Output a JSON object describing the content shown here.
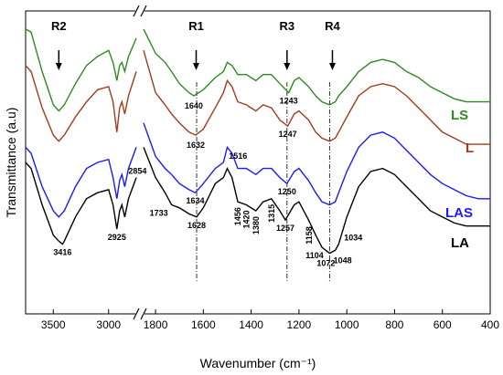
{
  "chart_data": {
    "type": "line",
    "title": "",
    "xlabel": "Wavenumber (cm⁻¹)",
    "ylabel": "Transmittance (a.u)",
    "xlim": [
      3750,
      400
    ],
    "x_reversed": true,
    "x_axis_break": [
      2750,
      1850
    ],
    "xticks": [
      3500,
      3000,
      1800,
      1600,
      1400,
      1200,
      1000,
      800,
      600,
      400
    ],
    "ylim": [
      0,
      10
    ],
    "y_ticks_shown": false,
    "grid": false,
    "legend": "labels placed at right end of each curve",
    "series": [
      {
        "name": "LS",
        "color": "#2e8b1e",
        "points": [
          [
            3750,
            9.4
          ],
          [
            3700,
            9.3
          ],
          [
            3600,
            8.0
          ],
          [
            3500,
            6.9
          ],
          [
            3450,
            6.7
          ],
          [
            3400,
            6.9
          ],
          [
            3300,
            7.6
          ],
          [
            3200,
            8.2
          ],
          [
            3100,
            8.5
          ],
          [
            3000,
            8.7
          ],
          [
            2960,
            8.3
          ],
          [
            2925,
            7.7
          ],
          [
            2900,
            8.2
          ],
          [
            2880,
            8.3
          ],
          [
            2854,
            8.0
          ],
          [
            2820,
            8.5
          ],
          [
            2750,
            9.1
          ],
          [
            1850,
            9.4
          ],
          [
            1800,
            8.6
          ],
          [
            1760,
            8.3
          ],
          [
            1733,
            8.0
          ],
          [
            1700,
            7.6
          ],
          [
            1660,
            7.3
          ],
          [
            1640,
            7.2
          ],
          [
            1600,
            7.4
          ],
          [
            1550,
            7.8
          ],
          [
            1516,
            8.0
          ],
          [
            1500,
            8.3
          ],
          [
            1480,
            8.2
          ],
          [
            1456,
            7.9
          ],
          [
            1420,
            7.9
          ],
          [
            1380,
            7.7
          ],
          [
            1350,
            7.9
          ],
          [
            1315,
            7.9
          ],
          [
            1280,
            7.6
          ],
          [
            1243,
            7.3
          ],
          [
            1220,
            7.7
          ],
          [
            1200,
            7.8
          ],
          [
            1160,
            7.5
          ],
          [
            1130,
            7.2
          ],
          [
            1104,
            7.0
          ],
          [
            1072,
            6.9
          ],
          [
            1048,
            7.0
          ],
          [
            1034,
            7.2
          ],
          [
            1000,
            7.5
          ],
          [
            950,
            8.0
          ],
          [
            900,
            8.3
          ],
          [
            850,
            8.4
          ],
          [
            800,
            8.3
          ],
          [
            750,
            8.0
          ],
          [
            700,
            7.8
          ],
          [
            650,
            7.5
          ],
          [
            600,
            7.3
          ],
          [
            550,
            7.1
          ],
          [
            500,
            7.0
          ],
          [
            450,
            7.0
          ],
          [
            400,
            7.0
          ]
        ]
      },
      {
        "name": "L",
        "color": "#a33a1c",
        "points": [
          [
            3750,
            8.2
          ],
          [
            3700,
            8.0
          ],
          [
            3600,
            6.8
          ],
          [
            3500,
            5.9
          ],
          [
            3450,
            5.7
          ],
          [
            3400,
            5.9
          ],
          [
            3300,
            6.5
          ],
          [
            3200,
            7.0
          ],
          [
            3100,
            7.4
          ],
          [
            3000,
            7.5
          ],
          [
            2960,
            7.0
          ],
          [
            2925,
            6.0
          ],
          [
            2900,
            6.8
          ],
          [
            2880,
            7.0
          ],
          [
            2854,
            6.6
          ],
          [
            2820,
            7.2
          ],
          [
            2750,
            8.0
          ],
          [
            1850,
            8.7
          ],
          [
            1800,
            7.3
          ],
          [
            1760,
            6.9
          ],
          [
            1733,
            6.6
          ],
          [
            1700,
            6.3
          ],
          [
            1660,
            6.0
          ],
          [
            1632,
            5.9
          ],
          [
            1600,
            6.1
          ],
          [
            1550,
            6.8
          ],
          [
            1516,
            7.3
          ],
          [
            1500,
            7.7
          ],
          [
            1480,
            7.5
          ],
          [
            1456,
            7.0
          ],
          [
            1420,
            6.9
          ],
          [
            1380,
            6.7
          ],
          [
            1350,
            6.9
          ],
          [
            1315,
            6.8
          ],
          [
            1280,
            6.4
          ],
          [
            1247,
            6.2
          ],
          [
            1220,
            6.6
          ],
          [
            1200,
            6.7
          ],
          [
            1160,
            6.4
          ],
          [
            1130,
            6.0
          ],
          [
            1104,
            5.8
          ],
          [
            1072,
            5.7
          ],
          [
            1048,
            5.8
          ],
          [
            1034,
            6.0
          ],
          [
            1000,
            6.5
          ],
          [
            950,
            7.2
          ],
          [
            900,
            7.5
          ],
          [
            850,
            7.6
          ],
          [
            800,
            7.5
          ],
          [
            750,
            7.2
          ],
          [
            700,
            6.8
          ],
          [
            650,
            6.4
          ],
          [
            600,
            6.0
          ],
          [
            550,
            5.8
          ],
          [
            500,
            5.6
          ],
          [
            450,
            5.6
          ],
          [
            400,
            5.6
          ]
        ]
      },
      {
        "name": "LAS",
        "color": "#1a1aff",
        "points": [
          [
            3750,
            5.5
          ],
          [
            3700,
            5.3
          ],
          [
            3600,
            4.2
          ],
          [
            3500,
            3.4
          ],
          [
            3450,
            3.2
          ],
          [
            3400,
            3.4
          ],
          [
            3300,
            4.2
          ],
          [
            3200,
            4.8
          ],
          [
            3100,
            5.0
          ],
          [
            3000,
            5.1
          ],
          [
            2960,
            4.5
          ],
          [
            2925,
            3.8
          ],
          [
            2900,
            4.4
          ],
          [
            2880,
            4.6
          ],
          [
            2854,
            4.2
          ],
          [
            2820,
            4.8
          ],
          [
            2750,
            5.5
          ],
          [
            1850,
            6.3
          ],
          [
            1800,
            5.2
          ],
          [
            1760,
            4.8
          ],
          [
            1733,
            4.6
          ],
          [
            1700,
            4.3
          ],
          [
            1660,
            4.1
          ],
          [
            1634,
            4.0
          ],
          [
            1600,
            4.3
          ],
          [
            1550,
            4.8
          ],
          [
            1516,
            5.0
          ],
          [
            1500,
            5.5
          ],
          [
            1480,
            5.3
          ],
          [
            1456,
            4.8
          ],
          [
            1420,
            4.8
          ],
          [
            1380,
            4.6
          ],
          [
            1350,
            4.8
          ],
          [
            1315,
            4.8
          ],
          [
            1280,
            4.5
          ],
          [
            1250,
            4.3
          ],
          [
            1220,
            4.7
          ],
          [
            1200,
            4.8
          ],
          [
            1160,
            4.4
          ],
          [
            1130,
            4.0
          ],
          [
            1104,
            3.7
          ],
          [
            1072,
            3.6
          ],
          [
            1048,
            3.7
          ],
          [
            1034,
            4.0
          ],
          [
            1000,
            4.7
          ],
          [
            950,
            5.5
          ],
          [
            900,
            5.9
          ],
          [
            850,
            6.0
          ],
          [
            800,
            5.8
          ],
          [
            750,
            5.4
          ],
          [
            700,
            5.0
          ],
          [
            650,
            4.6
          ],
          [
            600,
            4.3
          ],
          [
            550,
            4.1
          ],
          [
            500,
            3.9
          ],
          [
            450,
            3.8
          ],
          [
            400,
            3.8
          ]
        ]
      },
      {
        "name": "LA",
        "color": "#000000",
        "points": [
          [
            3750,
            5.0
          ],
          [
            3700,
            4.8
          ],
          [
            3600,
            3.6
          ],
          [
            3500,
            2.6
          ],
          [
            3450,
            2.4
          ],
          [
            3416,
            2.3
          ],
          [
            3400,
            2.4
          ],
          [
            3300,
            3.2
          ],
          [
            3200,
            3.8
          ],
          [
            3100,
            4.0
          ],
          [
            3000,
            4.1
          ],
          [
            2960,
            3.6
          ],
          [
            2925,
            2.8
          ],
          [
            2900,
            3.4
          ],
          [
            2880,
            3.6
          ],
          [
            2854,
            3.2
          ],
          [
            2820,
            3.8
          ],
          [
            2750,
            4.5
          ],
          [
            1850,
            5.5
          ],
          [
            1800,
            4.5
          ],
          [
            1760,
            4.0
          ],
          [
            1733,
            3.6
          ],
          [
            1700,
            3.5
          ],
          [
            1660,
            3.3
          ],
          [
            1628,
            3.2
          ],
          [
            1600,
            3.5
          ],
          [
            1550,
            4.3
          ],
          [
            1516,
            4.5
          ],
          [
            1500,
            4.8
          ],
          [
            1480,
            4.5
          ],
          [
            1456,
            3.7
          ],
          [
            1420,
            3.6
          ],
          [
            1380,
            3.4
          ],
          [
            1350,
            3.7
          ],
          [
            1315,
            3.8
          ],
          [
            1280,
            3.4
          ],
          [
            1257,
            3.1
          ],
          [
            1220,
            3.6
          ],
          [
            1200,
            3.7
          ],
          [
            1160,
            3.1
          ],
          [
            1130,
            2.6
          ],
          [
            1104,
            2.2
          ],
          [
            1072,
            2.0
          ],
          [
            1048,
            2.1
          ],
          [
            1034,
            2.3
          ],
          [
            1000,
            3.2
          ],
          [
            950,
            4.2
          ],
          [
            900,
            4.7
          ],
          [
            850,
            4.8
          ],
          [
            800,
            4.6
          ],
          [
            750,
            4.2
          ],
          [
            700,
            3.8
          ],
          [
            650,
            3.4
          ],
          [
            600,
            3.2
          ],
          [
            550,
            3.0
          ],
          [
            500,
            2.9
          ],
          [
            450,
            2.9
          ],
          [
            400,
            2.9
          ]
        ]
      }
    ],
    "regions": [
      {
        "label": "R2",
        "x": 3450
      },
      {
        "label": "R1",
        "x": 1630
      },
      {
        "label": "R3",
        "x": 1250
      },
      {
        "label": "R4",
        "x": 1060
      }
    ],
    "reference_lines": [
      1628,
      1250,
      1072
    ],
    "peak_labels": [
      {
        "text": "3416",
        "x": 3416
      },
      {
        "text": "2925",
        "x": 2925
      },
      {
        "text": "2854",
        "x": 2854
      },
      {
        "text": "1733",
        "x": 1733
      },
      {
        "text": "1628",
        "x": 1628
      },
      {
        "text": "1634",
        "x": 1634
      },
      {
        "text": "1632",
        "x": 1632
      },
      {
        "text": "1640",
        "x": 1640
      },
      {
        "text": "1516",
        "x": 1516
      },
      {
        "text": "1456",
        "x": 1456
      },
      {
        "text": "1420",
        "x": 1420
      },
      {
        "text": "1380",
        "x": 1380
      },
      {
        "text": "1315",
        "x": 1315
      },
      {
        "text": "1257",
        "x": 1257
      },
      {
        "text": "1250",
        "x": 1250
      },
      {
        "text": "1247",
        "x": 1247
      },
      {
        "text": "1243",
        "x": 1243
      },
      {
        "text": "1158",
        "x": 1158
      },
      {
        "text": "1104",
        "x": 1104
      },
      {
        "text": "1072",
        "x": 1072
      },
      {
        "text": "1048",
        "x": 1048
      },
      {
        "text": "1034",
        "x": 1034
      }
    ]
  }
}
